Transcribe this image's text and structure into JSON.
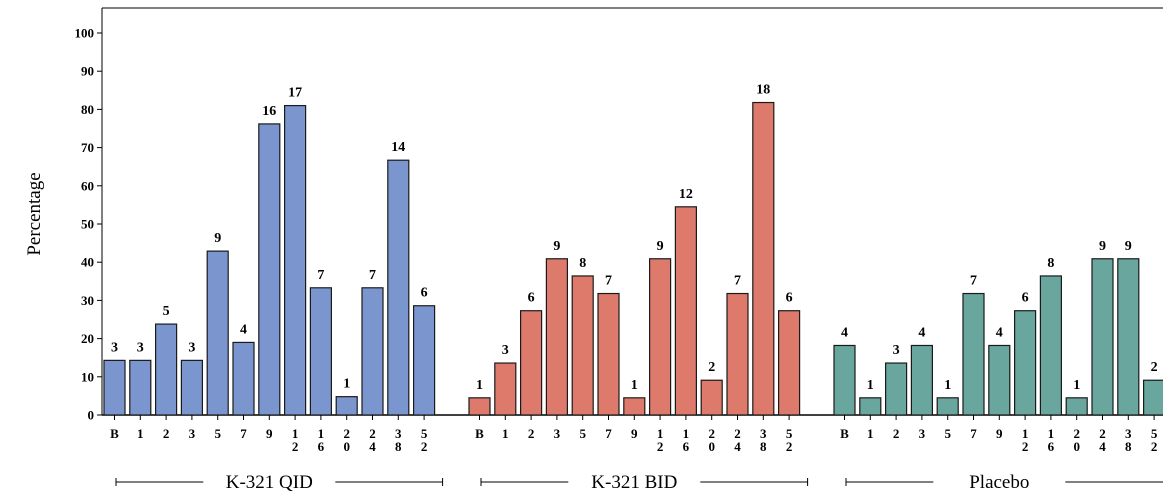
{
  "chart_data": {
    "type": "bar",
    "title": "",
    "xlabel": "",
    "ylabel": "Percentage",
    "ylim": [
      0,
      100
    ],
    "yticks": [
      0,
      10,
      20,
      30,
      40,
      50,
      60,
      70,
      80,
      90,
      100
    ],
    "grid": false,
    "categories": [
      "B",
      "1",
      "2",
      "3",
      "5",
      "7",
      "9",
      "12",
      "16",
      "20",
      "24",
      "38",
      "52"
    ],
    "series": [
      {
        "name": "K-321 QID",
        "color": "#7B96CF",
        "values": [
          14.3,
          14.3,
          23.8,
          14.3,
          42.9,
          19.0,
          76.2,
          81.0,
          33.3,
          4.8,
          33.3,
          66.7,
          28.6
        ],
        "labels": [
          "3",
          "3",
          "5",
          "3",
          "9",
          "4",
          "16",
          "17",
          "7",
          "1",
          "7",
          "14",
          "6"
        ]
      },
      {
        "name": "K-321 BID",
        "color": "#DE7A6C",
        "values": [
          4.5,
          13.6,
          27.3,
          40.9,
          36.4,
          31.8,
          4.5,
          40.9,
          54.5,
          9.1,
          31.8,
          81.8,
          27.3
        ],
        "labels": [
          "1",
          "3",
          "6",
          "9",
          "8",
          "7",
          "1",
          "9",
          "12",
          "2",
          "7",
          "18",
          "6"
        ]
      },
      {
        "name": "Placebo",
        "color": "#68A69E",
        "values": [
          18.2,
          4.5,
          13.6,
          18.2,
          4.5,
          31.8,
          18.2,
          27.3,
          36.4,
          4.5,
          40.9,
          40.9,
          9.1
        ],
        "labels": [
          "4",
          "1",
          "3",
          "4",
          "1",
          "7",
          "4",
          "6",
          "8",
          "1",
          "9",
          "9",
          "2"
        ]
      }
    ]
  }
}
